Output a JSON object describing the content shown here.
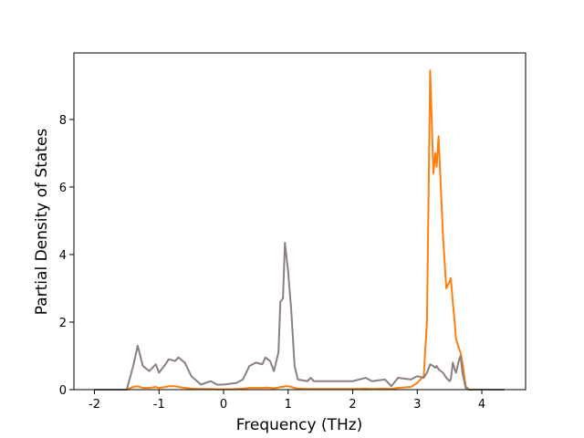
{
  "chart_data": {
    "type": "line",
    "xlabel": "Frequency (THz)",
    "ylabel": "Partial Density of States",
    "x": [
      -2,
      -1.5,
      -1.4,
      -1.33,
      -1.25,
      -1.15,
      -1.05,
      -1,
      -0.9,
      -0.85,
      -0.75,
      -0.7,
      -0.6,
      -0.5,
      -0.35,
      -0.2,
      -0.1,
      0,
      0.2,
      0.3,
      0.4,
      0.5,
      0.6,
      0.65,
      0.72,
      0.78,
      0.85,
      0.88,
      0.92,
      0.95,
      1,
      1.05,
      1.1,
      1.15,
      1.3,
      1.35,
      1.4,
      2,
      2.2,
      2.3,
      2.5,
      2.6,
      2.7,
      2.9,
      3,
      3.1,
      3.15,
      3.2,
      3.25,
      3.28,
      3.3,
      3.33,
      3.4,
      3.45,
      3.5,
      3.52,
      3.55,
      3.58,
      3.6,
      3.65,
      3.67,
      3.7,
      3.75,
      3.8,
      4.35
    ],
    "series": [
      {
        "color": "#ff7f0e",
        "values": [
          0,
          0,
          0.08,
          0.1,
          0.05,
          0.05,
          0.08,
          0.05,
          0.08,
          0.1,
          0.1,
          0.08,
          0.05,
          0.03,
          0.02,
          0.02,
          0.01,
          0.01,
          0.02,
          0.03,
          0.05,
          0.05,
          0.05,
          0.06,
          0.05,
          0.04,
          0.06,
          0.08,
          0.08,
          0.1,
          0.1,
          0.08,
          0.05,
          0.03,
          0.02,
          0.02,
          0.02,
          0.02,
          0.03,
          0.02,
          0.03,
          0.02,
          0.05,
          0.08,
          0.2,
          0.4,
          2,
          9.45,
          6.4,
          7,
          6.6,
          7.5,
          4.5,
          3,
          3.2,
          3.3,
          2.6,
          2,
          1.5,
          1.2,
          1.1,
          0.8,
          0.1,
          0,
          0
        ]
      },
      {
        "color": "#8c7f80",
        "values": [
          0,
          0,
          0.7,
          1.3,
          0.7,
          0.55,
          0.75,
          0.5,
          0.75,
          0.9,
          0.85,
          0.95,
          0.8,
          0.4,
          0.15,
          0.25,
          0.15,
          0.15,
          0.2,
          0.3,
          0.7,
          0.8,
          0.75,
          0.95,
          0.85,
          0.55,
          1.1,
          2.6,
          2.7,
          4.35,
          3.5,
          2.3,
          0.7,
          0.3,
          0.25,
          0.35,
          0.25,
          0.25,
          0.35,
          0.25,
          0.3,
          0.1,
          0.35,
          0.3,
          0.4,
          0.35,
          0.5,
          0.75,
          0.7,
          0.65,
          0.7,
          0.6,
          0.5,
          0.35,
          0.25,
          0.3,
          0.8,
          0.6,
          0.5,
          0.9,
          1,
          0.5,
          0.05,
          0,
          0
        ]
      }
    ],
    "xlim": [
      -2.318,
      4.678
    ],
    "ylim": [
      0,
      9.97
    ],
    "xticks": [
      -2,
      -1,
      0,
      1,
      2,
      3,
      4
    ],
    "yticks": [
      0,
      2,
      4,
      6,
      8
    ]
  }
}
